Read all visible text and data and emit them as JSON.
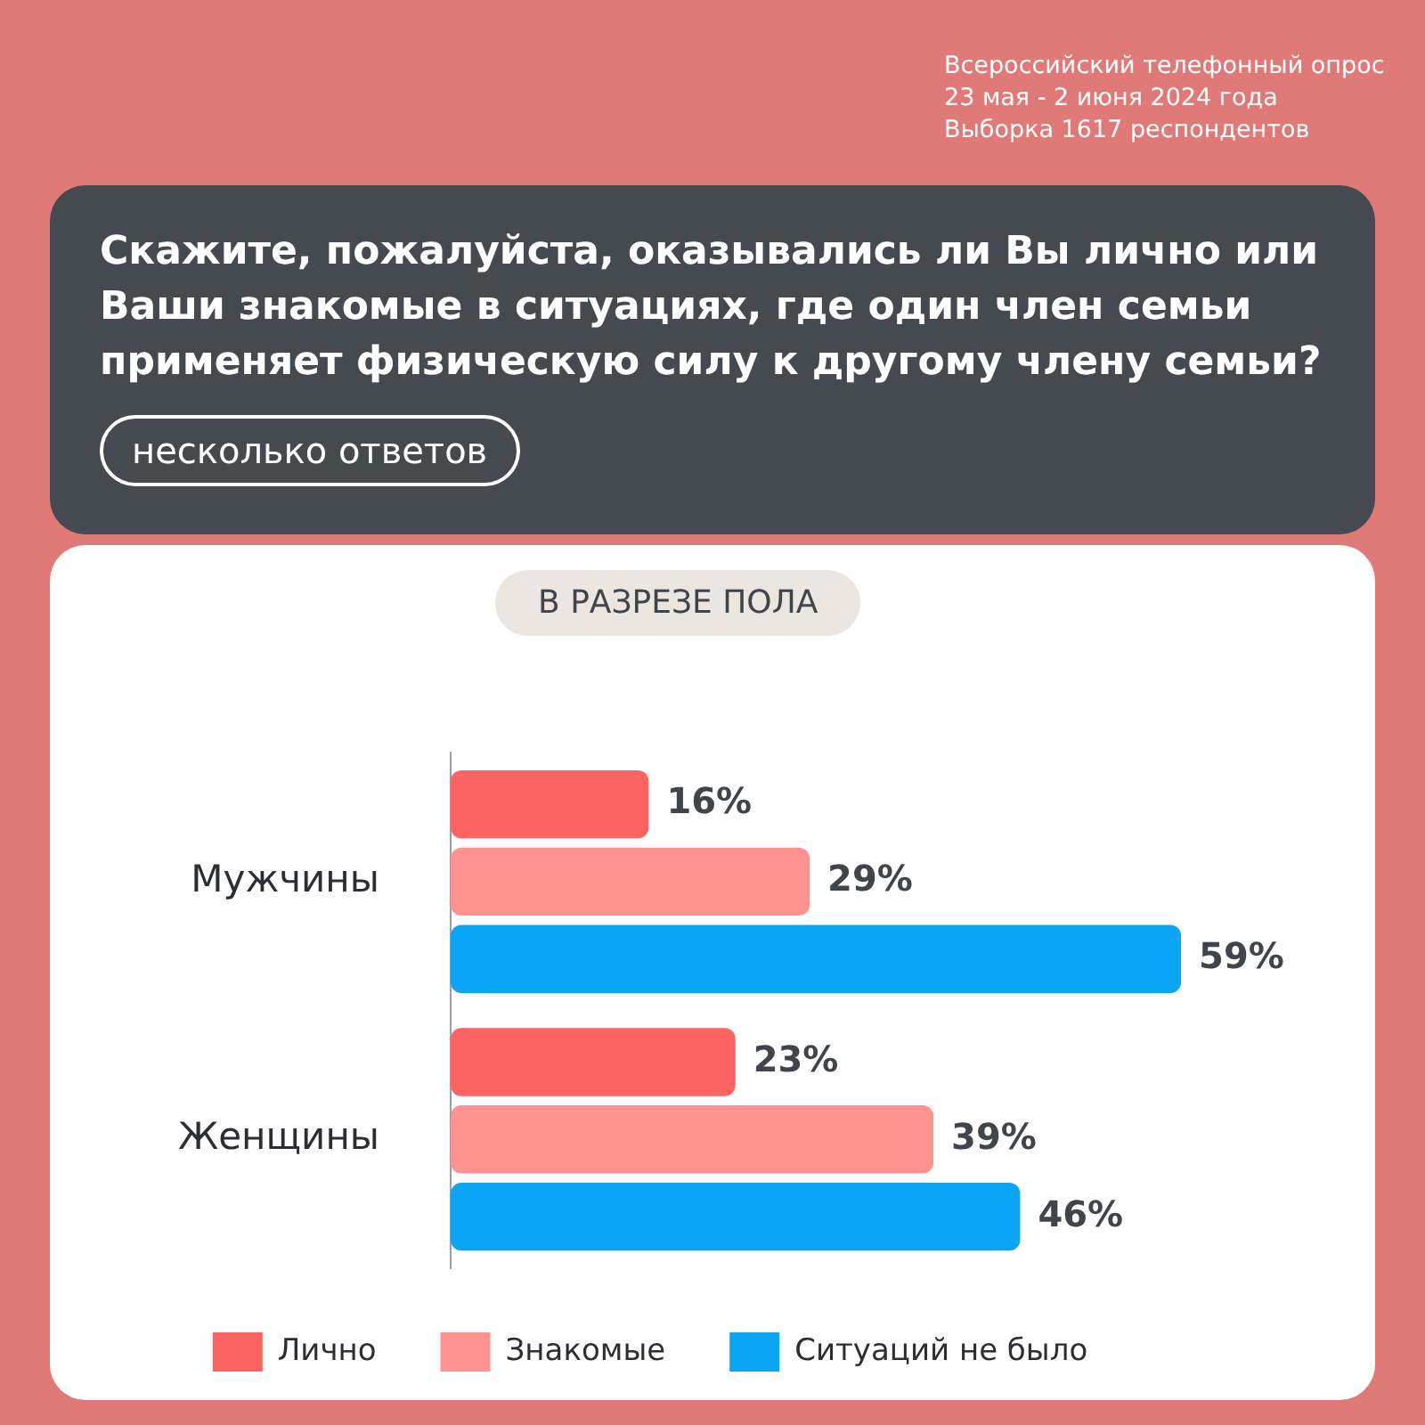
{
  "chart_data": {
    "type": "bar",
    "orientation": "horizontal",
    "title": "Скажите, пожалуйста, оказывались ли Вы лично или Ваши знакомые в ситуациях, где один член семьи применяет физическую силу к другому члену семьи?",
    "subtitle": "несколько ответов",
    "annotations": [
      "В РАЗРЕЗЕ ПОЛА",
      "Всероссийский телефонный опрос",
      "23 мая - 2 июня 2024 года",
      "Выборка 1617 респондентов"
    ],
    "categories": [
      "Мужчины",
      "Женщины"
    ],
    "series": [
      {
        "name": "Лично",
        "color": "#fe6363",
        "values": [
          16,
          23
        ],
        "value_labels": [
          "16%",
          "23%"
        ]
      },
      {
        "name": "Знакомые",
        "color": "#fd9290",
        "values": [
          29,
          39
        ],
        "value_labels": [
          "29%",
          "39%"
        ]
      },
      {
        "name": "Ситуаций не было",
        "color": "#0aa5f5",
        "values": [
          59,
          46
        ],
        "value_labels": [
          "59%",
          "46%"
        ]
      }
    ],
    "legend": "bottom"
  }
}
